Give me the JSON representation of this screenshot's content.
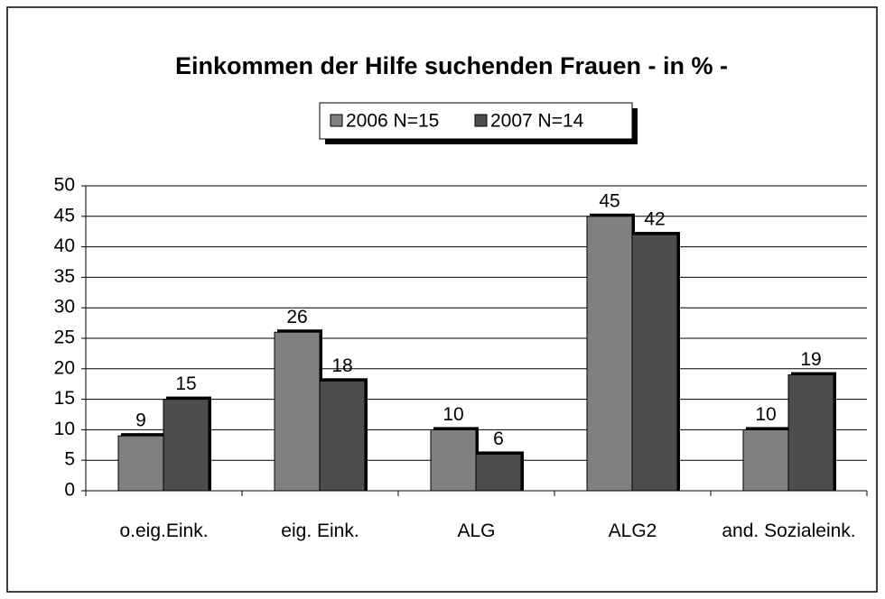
{
  "chart_data": {
    "type": "bar",
    "title": "Einkommen der Hilfe suchenden Frauen  - in % -",
    "categories": [
      "o.eig.Eink.",
      "eig. Eink.",
      "ALG",
      "ALG2",
      "and. Sozialeink."
    ],
    "series": [
      {
        "name": "2006 N=15",
        "color": "#808080",
        "values": [
          9,
          26,
          10,
          45,
          10
        ]
      },
      {
        "name": "2007 N=14",
        "color": "#4d4d4d",
        "values": [
          15,
          18,
          6,
          42,
          19
        ]
      }
    ],
    "ylim": [
      0,
      50
    ],
    "yticks": [
      0,
      5,
      10,
      15,
      20,
      25,
      30,
      35,
      40,
      45,
      50
    ],
    "grid": true,
    "legend": "top"
  }
}
